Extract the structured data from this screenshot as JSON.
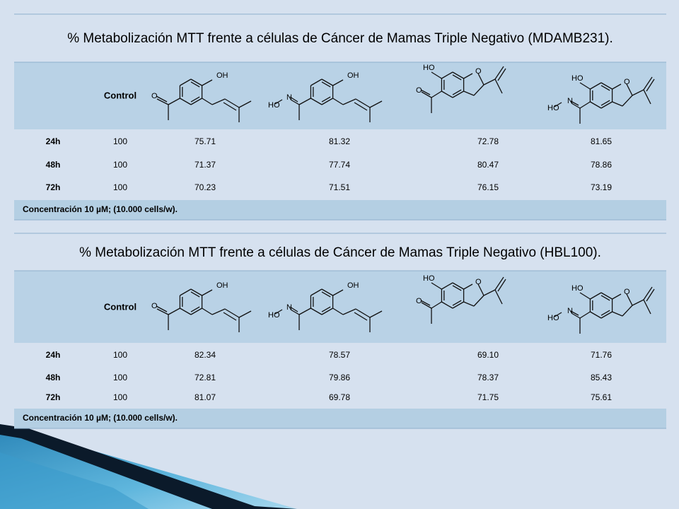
{
  "tables": [
    {
      "title": "% Metabolización MTT frente a células de Cáncer de Mamas Triple Negativo (MDAMB231).",
      "header": {
        "control": "Control",
        "structures": [
          {
            "atoms": [
              "OH",
              "O"
            ]
          },
          {
            "atoms": [
              "OH",
              "N",
              "HO"
            ]
          },
          {
            "atoms": [
              "HO",
              "O",
              "O"
            ]
          },
          {
            "atoms": [
              "HO",
              "O",
              "N",
              "HO"
            ]
          }
        ]
      },
      "rows": [
        [
          "24h",
          "100",
          "75.71",
          "81.32",
          "72.78",
          "81.65"
        ],
        [
          "48h",
          "100",
          "71.37",
          "77.74",
          "80.47",
          "78.86"
        ],
        [
          "72h",
          "100",
          "70.23",
          "71.51",
          "76.15",
          "73.19"
        ]
      ],
      "note": "Concentración 10 µM; (10.000 cells/w)."
    },
    {
      "title": "% Metabolización MTT frente a células de Cáncer de Mamas Triple Negativo (HBL100).",
      "header": {
        "control": "Control",
        "structures": [
          {
            "atoms": [
              "OH",
              "O"
            ]
          },
          {
            "atoms": [
              "OH",
              "N",
              "HO"
            ]
          },
          {
            "atoms": [
              "HO",
              "O",
              "O"
            ]
          },
          {
            "atoms": [
              "HO",
              "O",
              "N",
              "HO"
            ]
          }
        ]
      },
      "rows": [
        [
          "24h",
          "100",
          "82.34",
          "78.57",
          "69.10",
          "71.76"
        ],
        [
          "48h",
          "100",
          "72.81",
          "79.86",
          "78.37",
          "85.43"
        ],
        [
          "72h",
          "100",
          "81.07",
          "69.78",
          "71.75",
          "75.61"
        ]
      ],
      "note": "Concentración 10 µM; (10.000 cells/w)."
    }
  ]
}
